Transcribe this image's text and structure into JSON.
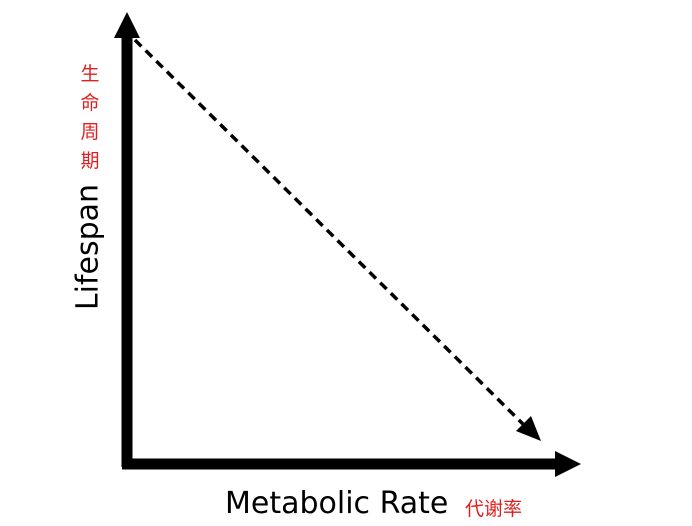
{
  "y_axis": {
    "label": "Lifespan",
    "label_cn": "生命周期"
  },
  "x_axis": {
    "label": "Metabolic Rate",
    "label_cn": "代谢率"
  },
  "trend": "negative",
  "colors": {
    "axis": "#000000",
    "cn_text": "#e02020"
  }
}
